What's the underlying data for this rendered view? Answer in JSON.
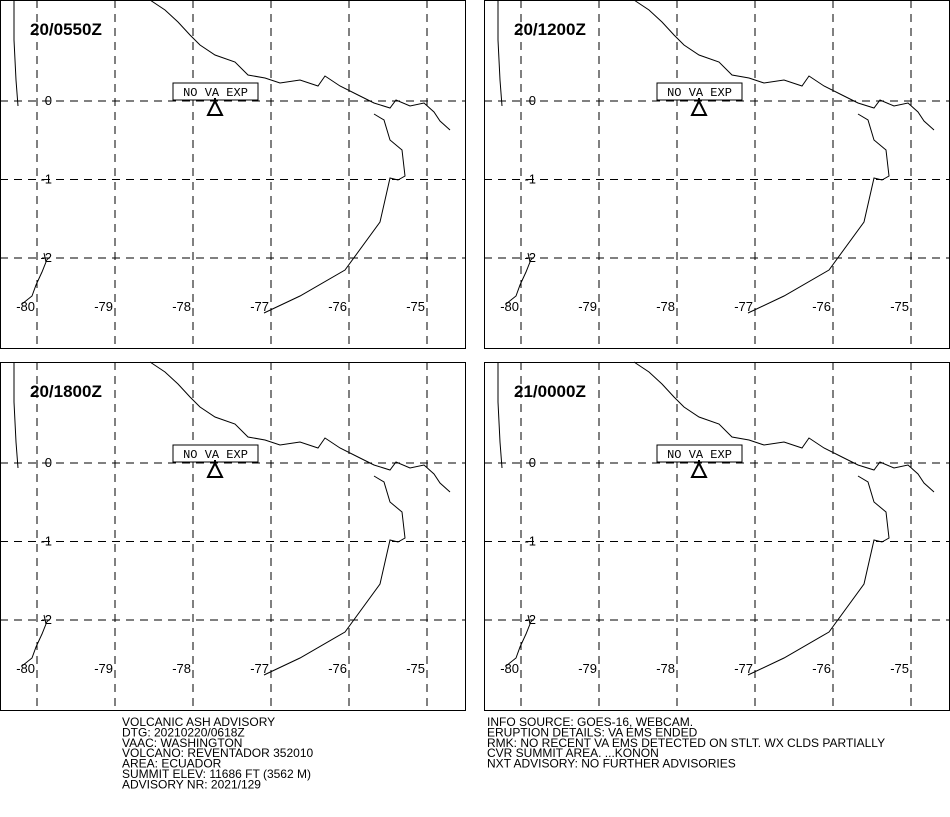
{
  "panels": [
    {
      "time": "20/0550Z"
    },
    {
      "time": "20/1200Z"
    },
    {
      "time": "20/1800Z"
    },
    {
      "time": "21/0000Z"
    }
  ],
  "latitudes": [
    0,
    -1,
    -2
  ],
  "longitudes": [
    -80,
    -79,
    -78,
    -77,
    -76,
    -75
  ],
  "ash_label": "NO VA EXP",
  "advisory_left": [
    "VOLCANIC ASH ADVISORY",
    "DTG: 20210220/0618Z",
    "VAAC: WASHINGTON",
    "VOLCANO: REVENTADOR 352010",
    "AREA: ECUADOR",
    "SUMMIT ELEV: 11686 FT (3562 M)",
    "ADVISORY NR: 2021/129"
  ],
  "advisory_right": [
    "INFO SOURCE: GOES-16, WEBCAM.",
    "ERUPTION DETAILS: VA EMS ENDED",
    "RMK: NO RECENT VA EMS DETECTED ON STLT. WX CLDS PARTIALLY",
    "CVR SUMMIT AREA. ...KONON",
    "NXT ADVISORY: NO FURTHER ADVISORIES"
  ]
}
